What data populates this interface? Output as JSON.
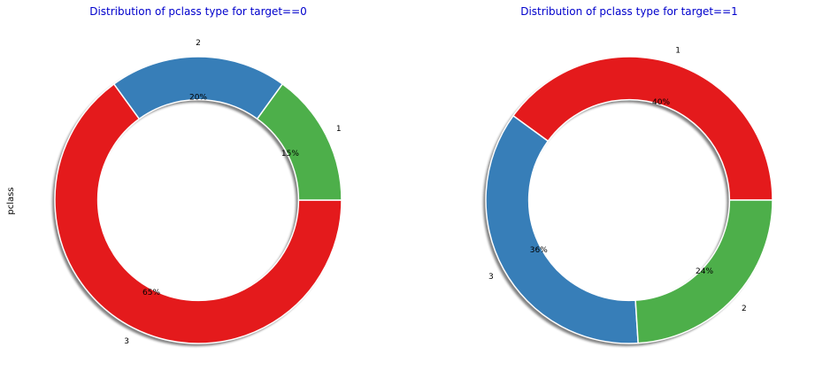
{
  "chart_data": [
    {
      "type": "pie",
      "variant": "donut",
      "title": "Distribution of pclass type for target==0",
      "ylabel": "pclass",
      "shadow": true,
      "slices": [
        {
          "label": "3",
          "value": 65,
          "pct_label": "65%",
          "color": "#e41a1c"
        },
        {
          "label": "2",
          "value": 20,
          "pct_label": "20%",
          "color": "#377eb8"
        },
        {
          "label": "1",
          "value": 15,
          "pct_label": "15%",
          "color": "#4daf4a"
        }
      ]
    },
    {
      "type": "pie",
      "variant": "donut",
      "title": "Distribution of pclass type for target==1",
      "ylabel": "",
      "shadow": true,
      "slices": [
        {
          "label": "1",
          "value": 40,
          "pct_label": "40%",
          "color": "#e41a1c"
        },
        {
          "label": "3",
          "value": 36,
          "pct_label": "36%",
          "color": "#377eb8"
        },
        {
          "label": "2",
          "value": 24,
          "pct_label": "24%",
          "color": "#4daf4a"
        }
      ]
    }
  ]
}
